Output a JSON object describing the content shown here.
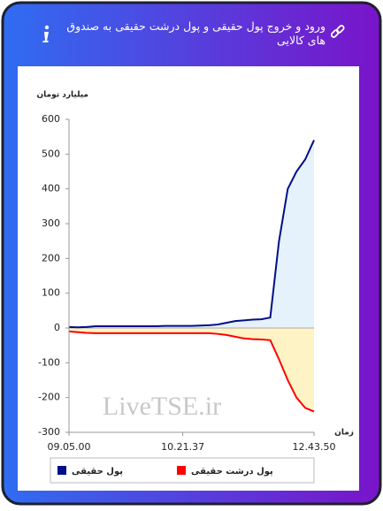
{
  "header": {
    "title": "ورود و خروج پول حقیقی و پول درشت حقیقی به صندوق های کالایی"
  },
  "chart_data": {
    "type": "line",
    "y_axis_label": "میلیارد تومان",
    "x_axis_label": "زمان",
    "watermark": "LiveTSE.ir",
    "categories": [
      "09.05.00",
      null,
      null,
      null,
      null,
      null,
      null,
      null,
      null,
      null,
      null,
      null,
      null,
      "10.21.37",
      null,
      null,
      null,
      null,
      null,
      null,
      null,
      null,
      null,
      null,
      null,
      null,
      null,
      null,
      "12.43.50"
    ],
    "series": [
      {
        "name": "پول حقیقی",
        "color": "#000e8a",
        "area_color": "#e6f2fb",
        "values": [
          3,
          2,
          3,
          5,
          5,
          5,
          5,
          5,
          5,
          5,
          5,
          6,
          6,
          6,
          6,
          7,
          8,
          10,
          15,
          20,
          22,
          24,
          25,
          30,
          250,
          400,
          450,
          485,
          540
        ]
      },
      {
        "name": "پول درشت حقیقی",
        "color": "#ff0000",
        "area_color": "#fdf3c4",
        "values": [
          -10,
          -12,
          -14,
          -15,
          -15,
          -15,
          -15,
          -15,
          -15,
          -15,
          -15,
          -15,
          -15,
          -15,
          -15,
          -15,
          -15,
          -17,
          -20,
          -25,
          -30,
          -32,
          -33,
          -35,
          -90,
          -150,
          -200,
          -230,
          -240
        ]
      }
    ],
    "ylim": [
      -300,
      600
    ],
    "yticks": [
      -300,
      -200,
      -100,
      0,
      100,
      200,
      300,
      400,
      500,
      600
    ],
    "grid": false
  }
}
